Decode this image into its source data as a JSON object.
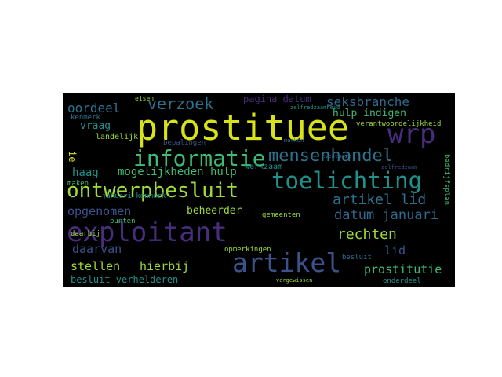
{
  "palette": {
    "yellow": "#d8e219",
    "lime": "#9fda3a",
    "green": "#3fbc73",
    "teal": "#21918c",
    "steelblue": "#2c728e",
    "blue": "#31688e",
    "indigo": "#3b528b",
    "purple": "#472d7b",
    "violet": "#440154",
    "background": "#000000"
  },
  "words": {
    "prostituee": "prostituee",
    "exploitant": "exploitant",
    "artikel": "artikel",
    "informatie": "informatie",
    "toelichting": "toelichting",
    "ontwerpbesluit": "ontwerpbesluit",
    "wrp": "wrp",
    "mensenhandel": "mensenhandel",
    "verzoek": "verzoek",
    "oordeel": "oordeel",
    "seksbranche": "seksbranche",
    "artikel_lid": "artikel lid",
    "rechten": "rechten",
    "datum_januari": "datum januari",
    "haag": "haag",
    "mogelijkheden_hulp": "mogelijkheden hulp",
    "opgenomen": "opgenomen",
    "daarvan": "daarvan",
    "stellen": "stellen",
    "hierbij": "hierbij",
    "prostitutie": "prostitutie",
    "lid": "lid",
    "beheerder": "beheerder",
    "pagina_datum": "pagina datum",
    "hulp_indigen": "hulp indigen",
    "vraag": "vraag",
    "besluit_verhelderen": "besluit verhelderen",
    "landelijk": "landelijk",
    "kenmerk": "kenmerk",
    "werkzaam": "werkzaam",
    "bepalingen": "bepalingen",
    "maken": "maken",
    "daarbij": "daarbij",
    "punten": "punten",
    "januari_kenmerk": "januari kenmerk",
    "gemeenten": "gemeenten",
    "opmerkingen": "opmerkingen",
    "besluit": "besluit",
    "onderdeel": "onderdeel",
    "verantwoordelijkheid": "verantwoordelijkheid",
    "ie": "ie",
    "bedrijfsplan": "bedrijfsplan",
    "eisen": "eisen",
    "zelfredzaamheid": "zelfredzaamheid",
    "vergewissen": "vergewissen",
    "eventueie": "eventueie",
    "zelfredzaam": "zelfredzaam",
    "merkon": "merkon"
  }
}
